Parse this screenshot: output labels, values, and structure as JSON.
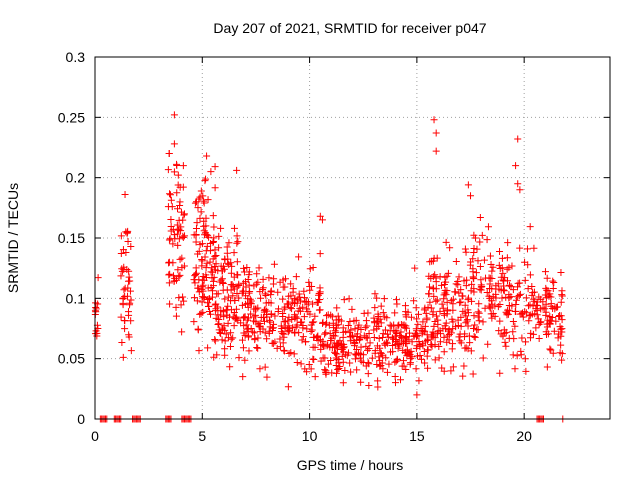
{
  "chart_data": {
    "type": "scatter",
    "title": "Day 207 of 2021, SRMTID for receiver p047",
    "xlabel": "GPS time / hours",
    "ylabel": "SRMTID / TECUs",
    "xlim": [
      0,
      24
    ],
    "ylim": [
      0,
      0.3
    ],
    "x_ticks": [
      0,
      5,
      10,
      15,
      20
    ],
    "y_ticks": [
      0,
      0.05,
      0.1,
      0.15,
      0.2,
      0.25,
      0.3
    ],
    "x_tick_labels": [
      "0",
      "5",
      "10",
      "15",
      "20"
    ],
    "y_tick_labels": [
      "0",
      "0.05",
      "0.1",
      "0.15",
      "0.2",
      "0.25",
      "0.3"
    ],
    "grid": true,
    "legend": "none",
    "series": [
      {
        "name": "SRMTID",
        "color": "#ff0000",
        "marker": "plus",
        "clusters": [
          {
            "x_range": [
              0.0,
              0.15
            ],
            "mean": 0.09,
            "spread": 0.02,
            "count": 14
          },
          {
            "x_range": [
              1.2,
              1.7
            ],
            "mean": 0.11,
            "spread": 0.04,
            "count": 45
          },
          {
            "x_range": [
              3.4,
              4.2
            ],
            "mean": 0.14,
            "spread": 0.05,
            "count": 70
          },
          {
            "x_range": [
              4.6,
              5.6
            ],
            "mean": 0.13,
            "spread": 0.045,
            "count": 110
          },
          {
            "x_range": [
              5.6,
              6.7
            ],
            "mean": 0.105,
            "spread": 0.035,
            "count": 110
          },
          {
            "x_range": [
              6.7,
              10.5
            ],
            "mean": 0.085,
            "spread": 0.028,
            "count": 260
          },
          {
            "x_range": [
              10.5,
              15.5
            ],
            "mean": 0.065,
            "spread": 0.022,
            "count": 330
          },
          {
            "x_range": [
              15.5,
              17.5
            ],
            "mean": 0.09,
            "spread": 0.035,
            "count": 150
          },
          {
            "x_range": [
              17.5,
              20.5
            ],
            "mean": 0.1,
            "spread": 0.035,
            "count": 190
          },
          {
            "x_range": [
              20.5,
              21.0
            ],
            "mean": 0.085,
            "spread": 0.02,
            "count": 20
          },
          {
            "x_range": [
              21.0,
              21.8
            ],
            "mean": 0.085,
            "spread": 0.025,
            "count": 60
          }
        ],
        "peaks": [
          {
            "x": 3.7,
            "y": 0.252
          },
          {
            "x": 3.7,
            "y": 0.228
          },
          {
            "x": 3.8,
            "y": 0.211
          },
          {
            "x": 5.2,
            "y": 0.218
          },
          {
            "x": 5.4,
            "y": 0.205
          },
          {
            "x": 6.6,
            "y": 0.206
          },
          {
            "x": 1.4,
            "y": 0.186
          },
          {
            "x": 15.8,
            "y": 0.248
          },
          {
            "x": 15.9,
            "y": 0.237
          },
          {
            "x": 15.9,
            "y": 0.222
          },
          {
            "x": 19.7,
            "y": 0.232
          },
          {
            "x": 19.6,
            "y": 0.21
          },
          {
            "x": 19.7,
            "y": 0.195
          },
          {
            "x": 19.8,
            "y": 0.19
          },
          {
            "x": 17.4,
            "y": 0.194
          },
          {
            "x": 17.5,
            "y": 0.185
          },
          {
            "x": 10.5,
            "y": 0.168
          },
          {
            "x": 10.6,
            "y": 0.165
          },
          {
            "x": 14.9,
            "y": 0.125
          },
          {
            "x": 15.0,
            "y": 0.02
          }
        ],
        "zero_runs": [
          [
            0.25,
            0.55
          ],
          [
            0.9,
            1.2
          ],
          [
            1.75,
            2.15
          ],
          [
            3.3,
            3.55
          ],
          [
            4.05,
            4.5
          ],
          [
            20.6,
            20.95
          ],
          [
            21.8,
            21.85
          ]
        ]
      }
    ]
  }
}
